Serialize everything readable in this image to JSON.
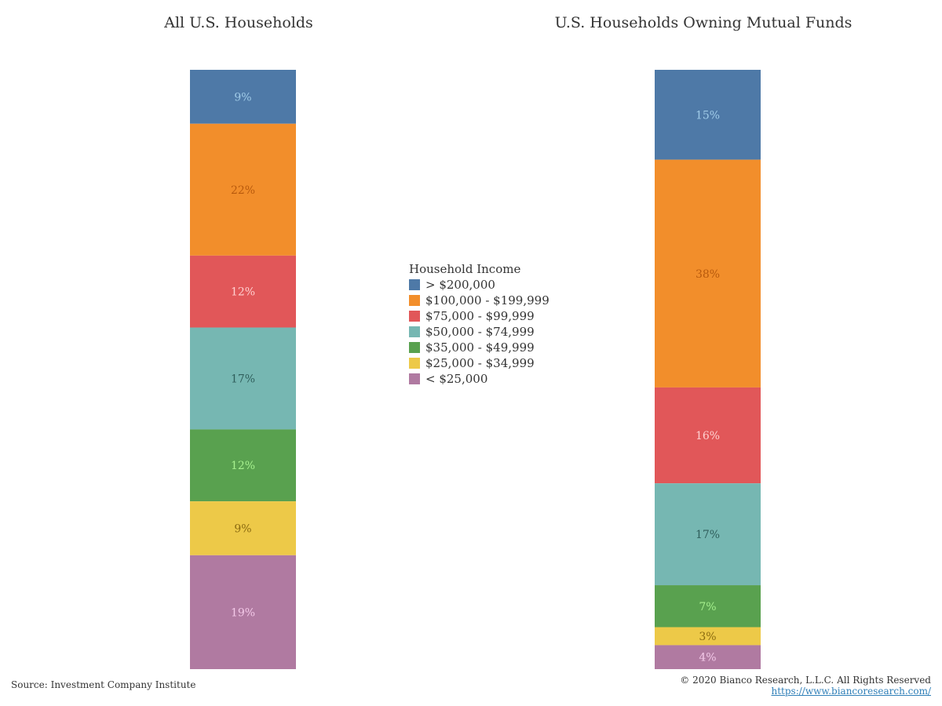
{
  "chart_data": {
    "type": "bar",
    "stacked": true,
    "normalized": true,
    "panels": [
      {
        "title": "All U.S. Households",
        "segments": [
          {
            "category": "> $200,000",
            "value": 9,
            "label": "9%"
          },
          {
            "category": "$100,000 - $199,999",
            "value": 22,
            "label": "22%"
          },
          {
            "category": "$75,000 - $99,999",
            "value": 12,
            "label": "12%"
          },
          {
            "category": "$50,000 - $74,999",
            "value": 17,
            "label": "17%"
          },
          {
            "category": "$35,000 - $49,999",
            "value": 12,
            "label": "12%"
          },
          {
            "category": "$25,000 - $34,999",
            "value": 9,
            "label": "9%"
          },
          {
            "category": "< $25,000",
            "value": 19,
            "label": "19%"
          }
        ]
      },
      {
        "title": "U.S. Households Owning Mutual Funds",
        "segments": [
          {
            "category": "> $200,000",
            "value": 15,
            "label": "15%"
          },
          {
            "category": "$100,000 - $199,999",
            "value": 38,
            "label": "38%"
          },
          {
            "category": "$75,000 - $99,999",
            "value": 16,
            "label": "16%"
          },
          {
            "category": "$50,000 - $74,999",
            "value": 17,
            "label": "17%"
          },
          {
            "category": "$35,000 - $49,999",
            "value": 7,
            "label": "7%"
          },
          {
            "category": "$25,000 - $34,999",
            "value": 3,
            "label": "3%"
          },
          {
            "category": "< $25,000",
            "value": 4,
            "label": "4%"
          }
        ]
      }
    ],
    "legend": {
      "title": "Household Income",
      "position": "center",
      "items": [
        {
          "label": "> $200,000",
          "color": "#4e79a7",
          "text_color": "#a0cbe8"
        },
        {
          "label": "$100,000 - $199,999",
          "color": "#f28e2b",
          "text_color": "#b85a0d"
        },
        {
          "label": "$75,000 - $99,999",
          "color": "#e15759",
          "text_color": "#ffd0d0"
        },
        {
          "label": "$50,000 - $74,999",
          "color": "#76b7b2",
          "text_color": "#2f5e5b"
        },
        {
          "label": "$35,000 - $49,999",
          "color": "#59a14f",
          "text_color": "#a6f08e"
        },
        {
          "label": "$25,000 - $34,999",
          "color": "#edc948",
          "text_color": "#8a6a10"
        },
        {
          "label": "< $25,000",
          "color": "#b07aa1",
          "text_color": "#f3c9e8"
        }
      ]
    }
  },
  "footer": {
    "source": "Source: Investment Company Institute",
    "copyright": "© 2020 Bianco Research, L.L.C. All Rights Reserved",
    "url": "https://www.biancoresearch.com/"
  }
}
